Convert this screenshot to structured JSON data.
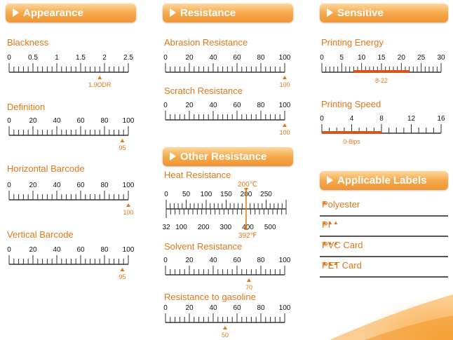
{
  "colors": {
    "accent": "#e07818",
    "line": "#333333",
    "bar": "#d8541a"
  },
  "sections": {
    "appearance": "Appearance",
    "resistance": "Resistance",
    "sensitive": "Sensitive",
    "other": "Other Resistance",
    "labels": "Applicable Labels"
  },
  "scales": {
    "blackness": {
      "label": "Blackness",
      "ticks": [
        "0",
        "0.5",
        "1",
        "1.5",
        "2",
        "2.5"
      ],
      "min": 0,
      "max": 2.5,
      "minor": 5,
      "marker": 1.9,
      "marker_text": "1.9ODR"
    },
    "definition": {
      "label": "Definition",
      "ticks": [
        "0",
        "20",
        "40",
        "60",
        "80",
        "100"
      ],
      "min": 0,
      "max": 100,
      "minor": 5,
      "marker": 95,
      "marker_text": "95"
    },
    "horizontal": {
      "label": "Horizontal Barcode",
      "ticks": [
        "0",
        "20",
        "40",
        "60",
        "80",
        "100"
      ],
      "min": 0,
      "max": 100,
      "minor": 5,
      "marker": 100,
      "marker_text": "100"
    },
    "vertical": {
      "label": "Vertical Barcode",
      "ticks": [
        "0",
        "20",
        "40",
        "60",
        "80",
        "100"
      ],
      "min": 0,
      "max": 100,
      "minor": 5,
      "marker": 95,
      "marker_text": "95"
    },
    "abrasion": {
      "label": "Abrasion Resistance",
      "ticks": [
        "0",
        "20",
        "40",
        "60",
        "80",
        "100"
      ],
      "min": 0,
      "max": 100,
      "minor": 5,
      "marker": 100,
      "marker_text": "100"
    },
    "scratch": {
      "label": "Scratch Resistance",
      "ticks": [
        "0",
        "20",
        "40",
        "60",
        "80",
        "100"
      ],
      "min": 0,
      "max": 100,
      "minor": 5,
      "marker": 100,
      "marker_text": "100"
    },
    "heat": {
      "label": "Heat Resistance",
      "ticks_c": [
        "0",
        "50",
        "100",
        "150",
        "200",
        "250"
      ],
      "ticks_f": [
        "32",
        "100",
        "200",
        "300",
        "400",
        "500"
      ],
      "min": 0,
      "max": 300,
      "marker_c": "200℃",
      "marker_f": "392℉",
      "marker": 200
    },
    "solvent": {
      "label": "Solvent Resistance",
      "ticks": [
        "0",
        "20",
        "40",
        "60",
        "80",
        "100"
      ],
      "min": 0,
      "max": 100,
      "minor": 5,
      "marker": 70,
      "marker_text": "70"
    },
    "gasoline": {
      "label": "Resistance to gasoline",
      "ticks": [
        "0",
        "20",
        "40",
        "60",
        "80",
        "100"
      ],
      "min": 0,
      "max": 100,
      "minor": 5,
      "marker": 50,
      "marker_text": "50"
    },
    "energy": {
      "label": "Printing Energy",
      "ticks": [
        "0",
        "5",
        "10",
        "15",
        "20",
        "25",
        "30"
      ],
      "min": 0,
      "max": 30,
      "minor": 5,
      "range": [
        8,
        22
      ],
      "range_text": "8-22"
    },
    "speed": {
      "label": "Printing Speed",
      "ticks": [
        "0",
        "4",
        "8",
        "12",
        "16"
      ],
      "min": 0,
      "max": 16,
      "minor": 4,
      "range": [
        0,
        8
      ],
      "range_text": "0-8ips"
    }
  },
  "applicable": [
    {
      "name": "Polyester",
      "marks": "▲"
    },
    {
      "name": "PI",
      "marks": "▲▲▲"
    },
    {
      "name": "PVC Card",
      "marks": "▲▲▲"
    },
    {
      "name": "PET Card",
      "marks": "▲▲▲"
    }
  ]
}
